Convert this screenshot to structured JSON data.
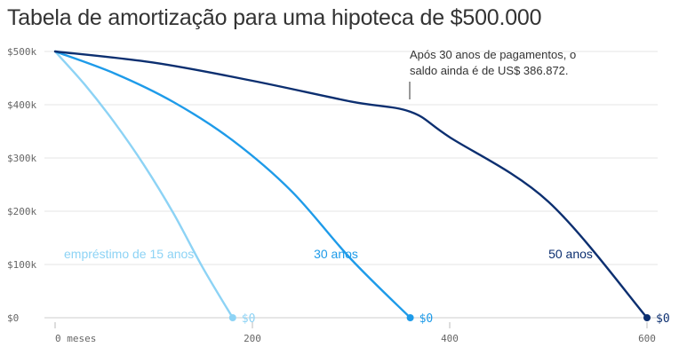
{
  "title": "Tabela de amortização para uma hipoteca de $500.000",
  "chart_data": {
    "type": "line",
    "title": "Tabela de amortização para uma hipoteca de $500.000",
    "xlim": [
      0,
      600
    ],
    "ylim": [
      0,
      500000
    ],
    "x_ticks": [
      {
        "value": 0,
        "label": "0 meses"
      },
      {
        "value": 200,
        "label": "200"
      },
      {
        "value": 400,
        "label": "400"
      },
      {
        "value": 600,
        "label": "600"
      }
    ],
    "y_ticks": [
      {
        "value": 0,
        "label": "$0"
      },
      {
        "value": 100000,
        "label": "$100k"
      },
      {
        "value": 200000,
        "label": "$200k"
      },
      {
        "value": 300000,
        "label": "$300k"
      },
      {
        "value": 400000,
        "label": "$400k"
      },
      {
        "value": 500000,
        "label": "$500k"
      }
    ],
    "grid": "horizontal",
    "series": [
      {
        "name": "empréstimo de 15 anos",
        "color": "#8dd3f5",
        "end_label": "$0",
        "x": [
          0,
          30,
          60,
          90,
          120,
          150,
          180
        ],
        "y": [
          500000,
          438000,
          367000,
          287000,
          196000,
          93000,
          0
        ]
      },
      {
        "name": "30 anos",
        "color": "#1e9be9",
        "end_label": "$0",
        "x": [
          0,
          60,
          120,
          180,
          240,
          300,
          360
        ],
        "y": [
          500000,
          459000,
          405000,
          333000,
          237000,
          110000,
          0
        ]
      },
      {
        "name": "50 anos",
        "color": "#0c2f70",
        "end_label": "$0",
        "x": [
          0,
          100,
          200,
          300,
          360,
          400,
          500,
          600
        ],
        "y": [
          500000,
          479000,
          445000,
          406000,
          386872,
          339000,
          218000,
          0
        ]
      }
    ],
    "annotation": {
      "text_line1": "Após 30 anos de pagamentos, o",
      "text_line2": "saldo ainda é de US$ 386.872.",
      "x": 360,
      "y": 386872
    }
  }
}
